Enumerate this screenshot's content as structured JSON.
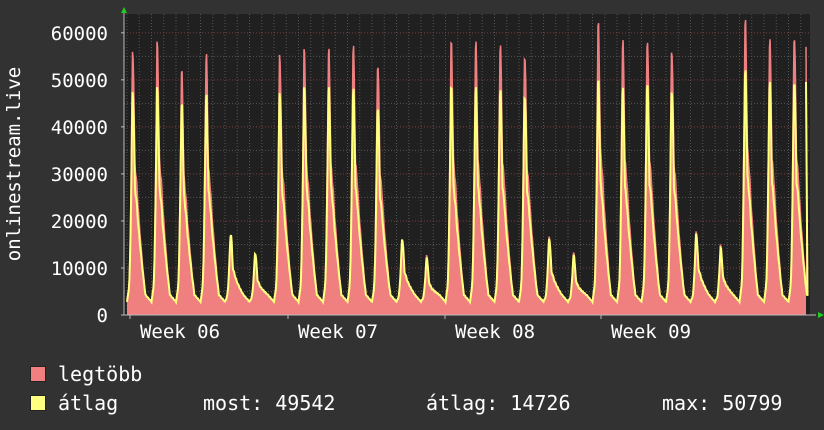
{
  "chart_data": {
    "type": "area",
    "ylabel": "onlinestream.live",
    "ylim": [
      0,
      64000
    ],
    "yticks": [
      0,
      10000,
      20000,
      30000,
      40000,
      50000,
      60000
    ],
    "ytick_labels": [
      "0",
      "10000",
      "20000",
      "30000",
      "40000",
      "50000",
      "60000"
    ],
    "xticks": [
      "Week 06",
      "Week 07",
      "Week 08",
      "Week 09"
    ],
    "grid": true,
    "days": 28,
    "series": [
      {
        "name": "legtöbb",
        "color": "#f08080",
        "daily_peaks": [
          55500,
          57000,
          51000,
          54500,
          17000,
          13000,
          54500,
          55500,
          55500,
          56500,
          53000,
          16000,
          12500,
          57000,
          57000,
          57000,
          55000,
          16500,
          13000,
          61000,
          57500,
          58000,
          56000,
          17500,
          14500,
          61500,
          58000,
          59000
        ]
      },
      {
        "name": "átlag",
        "color": "#ffff80",
        "daily_peaks": [
          47000,
          47500,
          44000,
          46000,
          17000,
          13000,
          46500,
          47500,
          47500,
          47500,
          44000,
          16000,
          12000,
          47500,
          47500,
          47500,
          46500,
          16000,
          12500,
          49000,
          47500,
          49000,
          47500,
          17000,
          14000,
          51000,
          49000,
          49500
        ]
      }
    ],
    "last_value": 49542
  },
  "legend": {
    "items": [
      {
        "label": "legtöbb",
        "color": "#f08080"
      },
      {
        "label": "átlag",
        "color": "#ffff80"
      }
    ]
  },
  "stats": {
    "most": "most: 49542",
    "atlag": "átlag: 14726",
    "max": "max: 50799"
  }
}
